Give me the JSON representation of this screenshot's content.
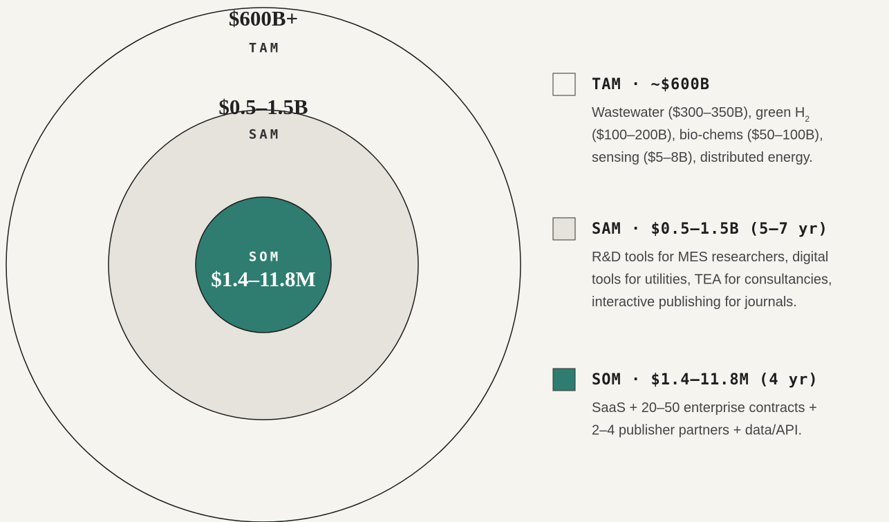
{
  "circles": [
    {
      "value": "$600B+",
      "label": "TAM",
      "fill": "#f5f4ef"
    },
    {
      "value": "$0.5–1.5B",
      "label": "SAM",
      "fill": "#e6e3dc"
    },
    {
      "label": "SOM",
      "value": "$1.4–11.8M",
      "fill": "#2e7d70"
    }
  ],
  "legend": [
    {
      "title": "TAM · ~$600B",
      "color": "#f5f4ef",
      "lines": [
        {
          "text": "Wastewater ($300–350B), green H",
          "sub": "2"
        },
        {
          "text": "($100–200B), bio-chems ($50–100B),"
        },
        {
          "text": "sensing ($5–8B), distributed energy."
        }
      ]
    },
    {
      "title": "SAM · $0.5–1.5B (5–7 yr)",
      "color": "#e6e3dc",
      "lines": [
        {
          "text": "R&D tools for MES researchers, digital"
        },
        {
          "text": "tools for utilities, TEA for consultancies,"
        },
        {
          "text": "interactive publishing for journals."
        }
      ]
    },
    {
      "title": "SOM · $1.4–11.8M (4 yr)",
      "color": "#2e7d70",
      "lines": [
        {
          "text": "SaaS + 20–50 enterprise contracts +"
        },
        {
          "text": "2–4 publisher partners + data/API."
        }
      ]
    }
  ]
}
